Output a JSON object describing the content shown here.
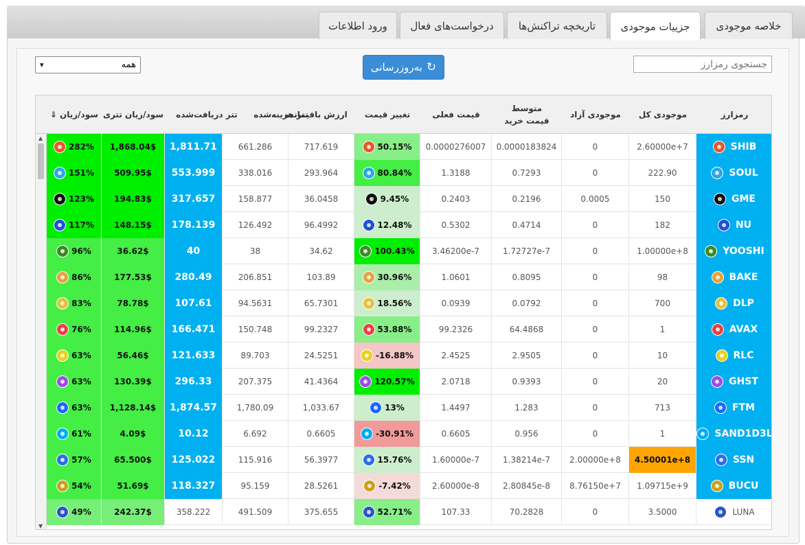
{
  "tabs": [
    {
      "label": "خلاصه موجودی",
      "active": false
    },
    {
      "label": "جزییات موجودی",
      "active": true
    },
    {
      "label": "تاریخچه تراکنش‌ها",
      "active": false
    },
    {
      "label": "درخواست‌های فعال",
      "active": false
    },
    {
      "label": "ورود اطلاعات",
      "active": false
    }
  ],
  "search": {
    "placeholder": "جستجوی رمزارز"
  },
  "refresh": {
    "label": "به‌روزرسانی",
    "icon": "refresh-icon"
  },
  "filter": {
    "selected": "همه"
  },
  "columns": {
    "coin": "رمزارز",
    "total": "موجودی کل",
    "free": "موجودی آزاد",
    "avg_price": "متوسط قیمت خرید",
    "cur_price": "قیمت فعلی",
    "price_change": "تغییر قیمت",
    "remaining_value": "ارزش باقیمانده",
    "usdt_cost": "تتر هزینه‌شده",
    "usdt_received": "تتر دریافت‌شده",
    "usdt_pnl": "سود/زیان تتری",
    "pnl": "سود/زیان"
  },
  "sort_indicator": "⇓",
  "colors": {
    "cyan": "#00b0f0",
    "green": "#00ee00",
    "green_mid": "#44ee44",
    "green_light": "#77ee77",
    "change_light": "#cceecc",
    "change_red": "#f09a9a",
    "change_pink": "#f5c6c6",
    "orange": "#ffa500"
  },
  "rows": [
    {
      "coin": "SHIB",
      "icon": "shib-icon",
      "iconColor": "#e6582a",
      "total": "2.60000e+7",
      "free": "0",
      "avg": "0.0000183824",
      "cur": "0.0000276007",
      "change": "50.15%",
      "changeBg": "#88ee88",
      "remaining": "717.619",
      "cost": "661.286",
      "received": "1,811.71",
      "receivedBg": "#00b0f0",
      "usdtPnl": "1,868.04$",
      "usdtPnlBg": "#00ee00",
      "pnl": "282%",
      "pnlBg": "#00ee00",
      "nameBg": "#00b0f0",
      "totalBg": ""
    },
    {
      "coin": "SOUL",
      "icon": "soul-icon",
      "iconColor": "#2aa8e6",
      "total": "222.90",
      "free": "0",
      "avg": "0.7293",
      "cur": "1.3188",
      "change": "80.84%",
      "changeBg": "#44ee44",
      "remaining": "293.964",
      "cost": "338.016",
      "received": "553.999",
      "receivedBg": "#00b0f0",
      "usdtPnl": "509.95$",
      "usdtPnlBg": "#00ee00",
      "pnl": "151%",
      "pnlBg": "#00ee00",
      "nameBg": "#00b0f0",
      "totalBg": ""
    },
    {
      "coin": "GME",
      "icon": "gme-icon",
      "iconColor": "#111111",
      "total": "150",
      "free": "0.0005",
      "avg": "0.2196",
      "cur": "0.2403",
      "change": "9.45%",
      "changeBg": "#cceecc",
      "remaining": "36.0458",
      "cost": "158.877",
      "received": "317.657",
      "receivedBg": "#00b0f0",
      "usdtPnl": "194.83$",
      "usdtPnlBg": "#00ee00",
      "pnl": "123%",
      "pnlBg": "#00ee00",
      "nameBg": "#00b0f0",
      "totalBg": ""
    },
    {
      "coin": "NU",
      "icon": "nu-icon",
      "iconColor": "#1e50d8",
      "total": "182",
      "free": "0",
      "avg": "0.4714",
      "cur": "0.5302",
      "change": "12.48%",
      "changeBg": "#cceecc",
      "remaining": "96.4992",
      "cost": "126.492",
      "received": "178.139",
      "receivedBg": "#00b0f0",
      "usdtPnl": "148.15$",
      "usdtPnlBg": "#00ee00",
      "pnl": "117%",
      "pnlBg": "#00ee00",
      "nameBg": "#00b0f0",
      "totalBg": ""
    },
    {
      "coin": "YOOSHI",
      "icon": "yooshi-icon",
      "iconColor": "#3c8a2a",
      "total": "1.00000e+8",
      "free": "0",
      "avg": "1.72727e-7",
      "cur": "3.46200e-7",
      "change": "100.43%",
      "changeBg": "#00ee00",
      "remaining": "34.62",
      "cost": "38",
      "received": "40",
      "receivedBg": "#00b0f0",
      "usdtPnl": "36.62$",
      "usdtPnlBg": "#44ee44",
      "pnl": "96%",
      "pnlBg": "#44ee44",
      "nameBg": "#00b0f0",
      "totalBg": ""
    },
    {
      "coin": "BAKE",
      "icon": "bake-icon",
      "iconColor": "#e6a23c",
      "total": "98",
      "free": "0",
      "avg": "0.8095",
      "cur": "1.0601",
      "change": "30.96%",
      "changeBg": "#aaeeaa",
      "remaining": "103.89",
      "cost": "206.851",
      "received": "280.49",
      "receivedBg": "#00b0f0",
      "usdtPnl": "177.53$",
      "usdtPnlBg": "#44ee44",
      "pnl": "86%",
      "pnlBg": "#44ee44",
      "nameBg": "#00b0f0",
      "totalBg": ""
    },
    {
      "coin": "DLP",
      "icon": "dlp-icon",
      "iconColor": "#e6c23c",
      "total": "700",
      "free": "0",
      "avg": "0.0792",
      "cur": "0.0939",
      "change": "18.56%",
      "changeBg": "#cceecc",
      "remaining": "65.7301",
      "cost": "94.5631",
      "received": "107.61",
      "receivedBg": "#00b0f0",
      "usdtPnl": "78.78$",
      "usdtPnlBg": "#44ee44",
      "pnl": "83%",
      "pnlBg": "#44ee44",
      "nameBg": "#00b0f0",
      "totalBg": ""
    },
    {
      "coin": "AVAX",
      "icon": "avax-icon",
      "iconColor": "#e84142",
      "total": "1",
      "free": "0",
      "avg": "64.4868",
      "cur": "99.2326",
      "change": "53.88%",
      "changeBg": "#88ee88",
      "remaining": "99.2327",
      "cost": "150.748",
      "received": "166.471",
      "receivedBg": "#00b0f0",
      "usdtPnl": "114.96$",
      "usdtPnlBg": "#44ee44",
      "pnl": "76%",
      "pnlBg": "#44ee44",
      "nameBg": "#00b0f0",
      "totalBg": ""
    },
    {
      "coin": "RLC",
      "icon": "rlc-icon",
      "iconColor": "#e6d21e",
      "total": "10",
      "free": "0",
      "avg": "2.9505",
      "cur": "2.4525",
      "change": "-16.88%",
      "changeBg": "#f5c6c6",
      "remaining": "24.5251",
      "cost": "89.703",
      "received": "121.633",
      "receivedBg": "#00b0f0",
      "usdtPnl": "56.46$",
      "usdtPnlBg": "#44ee44",
      "pnl": "63%",
      "pnlBg": "#44ee44",
      "nameBg": "#00b0f0",
      "totalBg": ""
    },
    {
      "coin": "GHST",
      "icon": "ghst-icon",
      "iconColor": "#9b4de6",
      "total": "20",
      "free": "0",
      "avg": "0.9393",
      "cur": "2.0718",
      "change": "120.57%",
      "changeBg": "#00ee00",
      "remaining": "41.4364",
      "cost": "207.375",
      "received": "296.33",
      "receivedBg": "#00b0f0",
      "usdtPnl": "130.39$",
      "usdtPnlBg": "#44ee44",
      "pnl": "63%",
      "pnlBg": "#44ee44",
      "nameBg": "#00b0f0",
      "totalBg": ""
    },
    {
      "coin": "FTM",
      "icon": "ftm-icon",
      "iconColor": "#1969ff",
      "total": "713",
      "free": "0",
      "avg": "1.283",
      "cur": "1.4497",
      "change": "13%",
      "changeBg": "#cceecc",
      "remaining": "1,033.67",
      "cost": "1,780.09",
      "received": "1,874.57",
      "receivedBg": "#00b0f0",
      "usdtPnl": "1,128.14$",
      "usdtPnlBg": "#44ee44",
      "pnl": "63%",
      "pnlBg": "#44ee44",
      "nameBg": "#00b0f0",
      "totalBg": ""
    },
    {
      "coin": "SAND1D3L",
      "icon": "sand-icon",
      "iconColor": "#00adef",
      "total": "1",
      "free": "0",
      "avg": "0.956",
      "cur": "0.6605",
      "change": "-30.91%",
      "changeBg": "#f09a9a",
      "remaining": "0.6605",
      "cost": "6.692",
      "received": "10.12",
      "receivedBg": "#00b0f0",
      "usdtPnl": "4.09$",
      "usdtPnlBg": "#44ee44",
      "pnl": "61%",
      "pnlBg": "#44ee44",
      "nameBg": "#00b0f0",
      "totalBg": ""
    },
    {
      "coin": "SSN",
      "icon": "ssn-icon",
      "iconColor": "#2a6ee6",
      "total": "4.50001e+8",
      "free": "2.00000e+8",
      "avg": "1.38214e-7",
      "cur": "1.60000e-7",
      "change": "15.76%",
      "changeBg": "#cceecc",
      "remaining": "56.3977",
      "cost": "115.916",
      "received": "125.022",
      "receivedBg": "#00b0f0",
      "usdtPnl": "65.500$",
      "usdtPnlBg": "#44ee44",
      "pnl": "57%",
      "pnlBg": "#44ee44",
      "nameBg": "#00b0f0",
      "totalBg": "#ffa500"
    },
    {
      "coin": "BUCU",
      "icon": "bucu-icon",
      "iconColor": "#c8a21e",
      "total": "1.09715e+9",
      "free": "8.76150e+7",
      "avg": "2.80845e-8",
      "cur": "2.60000e-8",
      "change": "-7.42%",
      "changeBg": "#f5dada",
      "remaining": "28.5261",
      "cost": "95.159",
      "received": "118.327",
      "receivedBg": "#00b0f0",
      "usdtPnl": "51.69$",
      "usdtPnlBg": "#44ee44",
      "pnl": "54%",
      "pnlBg": "#44ee44",
      "nameBg": "#00b0f0",
      "totalBg": ""
    },
    {
      "coin": "LUNA",
      "icon": "luna-icon",
      "iconColor": "#2a55c8",
      "total": "3.5000",
      "free": "0",
      "avg": "70.2828",
      "cur": "107.33",
      "change": "52.71%",
      "changeBg": "#88ee88",
      "remaining": "375.655",
      "cost": "491.509",
      "received": "358.222",
      "receivedBg": "",
      "usdtPnl": "242.37$",
      "usdtPnlBg": "#77ee77",
      "pnl": "49%",
      "pnlBg": "#77ee77",
      "nameBg": "",
      "totalBg": ""
    }
  ]
}
